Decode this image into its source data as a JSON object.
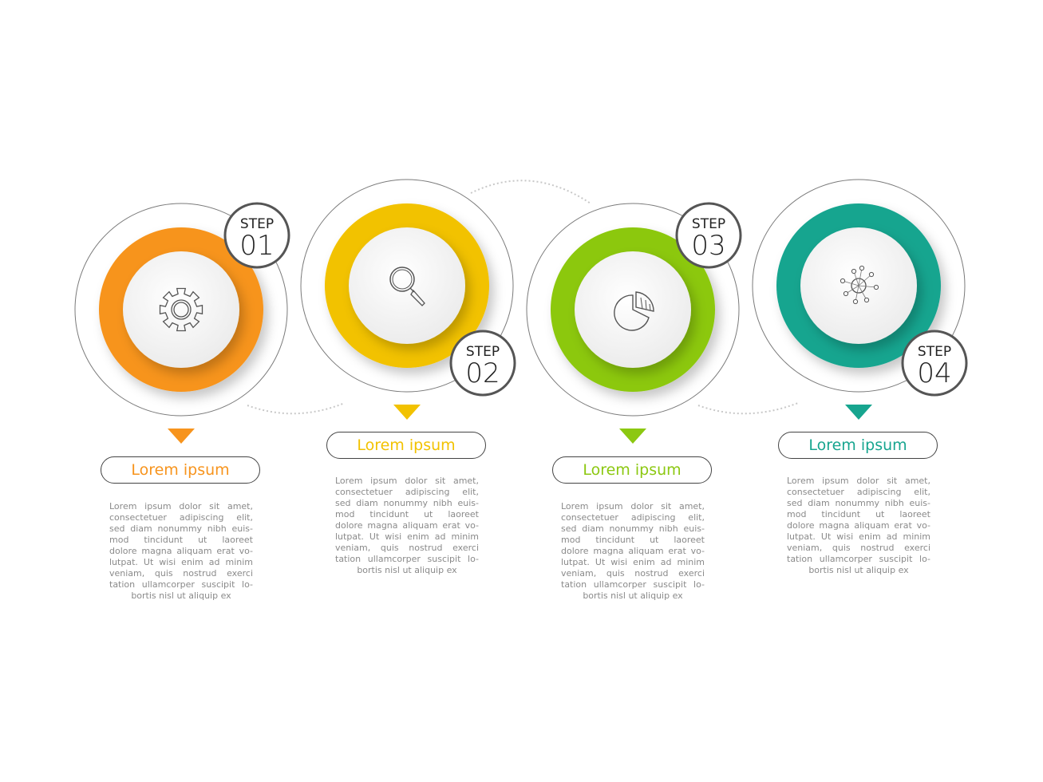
{
  "steps": [
    {
      "step_label": "STEP",
      "number": "01",
      "title": "Lorem ipsum",
      "color": "#f7941d",
      "icon": "gear-icon",
      "lines": [
        "Lorem ipsum dolor sit amet,",
        "consectetuer adipiscing elit,",
        "sed diam nonummy nibh euis-",
        "mod tincidunt ut laoreet",
        "dolore magna aliquam erat vo-",
        "lutpat. Ut wisi enim ad minim",
        "veniam, quis nostrud exerci",
        "tation ullamcorper suscipit lo-",
        "bortis nisl ut aliquip ex"
      ]
    },
    {
      "step_label": "STEP",
      "number": "02",
      "title": "Lorem ipsum",
      "color": "#f2c200",
      "icon": "magnifier-icon",
      "lines": [
        "Lorem ipsum dolor sit amet,",
        "consectetuer adipiscing elit,",
        "sed diam nonummy nibh euis-",
        "mod tincidunt ut laoreet",
        "dolore magna aliquam erat vo-",
        "lutpat. Ut wisi enim ad minim",
        "veniam, quis nostrud exerci",
        "tation ullamcorper suscipit lo-",
        "bortis nisl ut aliquip ex"
      ]
    },
    {
      "step_label": "STEP",
      "number": "03",
      "title": "Lorem ipsum",
      "color": "#8cc811",
      "icon": "pie-chart-icon",
      "lines": [
        "Lorem ipsum dolor sit amet,",
        "consectetuer adipiscing elit,",
        "sed diam nonummy nibh euis-",
        "mod tincidunt ut laoreet",
        "dolore magna aliquam erat vo-",
        "lutpat. Ut wisi enim ad minim",
        "veniam, quis nostrud exerci",
        "tation ullamcorper suscipit lo-",
        "bortis nisl ut aliquip ex"
      ]
    },
    {
      "step_label": "STEP",
      "number": "04",
      "title": "Lorem ipsum",
      "color": "#17a58f",
      "icon": "network-icon",
      "lines": [
        "Lorem ipsum dolor sit amet,",
        "consectetuer adipiscing elit,",
        "sed diam nonummy nibh euis-",
        "mod tincidunt ut laoreet",
        "dolore magna aliquam erat vo-",
        "lutpat. Ut wisi enim ad minim",
        "veniam, quis nostrud exerci",
        "tation ullamcorper suscipit lo-",
        "bortis nisl ut aliquip ex"
      ]
    }
  ]
}
